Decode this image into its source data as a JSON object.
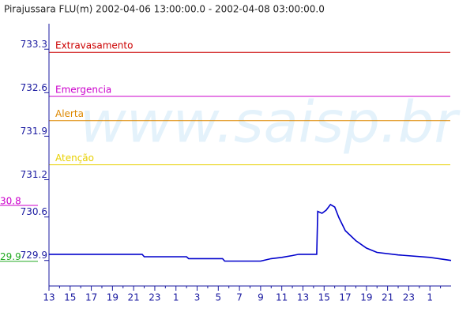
{
  "chart_data": {
    "type": "line",
    "title": "Pirajussara FLU(m) 2002-04-06 13:00:00.0 - 2002-04-08 03:00:00.0",
    "watermark": "www.saisp.br",
    "xlim": [
      0,
      38
    ],
    "xticks": [
      {
        "value": 0,
        "label": "13"
      },
      {
        "value": 2,
        "label": "15"
      },
      {
        "value": 4,
        "label": "17"
      },
      {
        "value": 6,
        "label": "19"
      },
      {
        "value": 8,
        "label": "21"
      },
      {
        "value": 10,
        "label": "23"
      },
      {
        "value": 12,
        "label": "1"
      },
      {
        "value": 14,
        "label": "3"
      },
      {
        "value": 16,
        "label": "5"
      },
      {
        "value": 18,
        "label": "7"
      },
      {
        "value": 20,
        "label": "9"
      },
      {
        "value": 22,
        "label": "11"
      },
      {
        "value": 24,
        "label": "13"
      },
      {
        "value": 26,
        "label": "15"
      },
      {
        "value": 28,
        "label": "17"
      },
      {
        "value": 30,
        "label": "19"
      },
      {
        "value": 32,
        "label": "21"
      },
      {
        "value": 34,
        "label": "23"
      },
      {
        "value": 36,
        "label": "1"
      }
    ],
    "ylim": [
      729.49,
      733.71
    ],
    "yticks": [
      729.9,
      730.6,
      731.2,
      731.9,
      732.6,
      733.3
    ],
    "thresholds": [
      {
        "name": "Extravasamento",
        "value": 733.25,
        "color": "#cc0000"
      },
      {
        "name": "Emergencia",
        "value": 732.54,
        "color": "#cc00cc"
      },
      {
        "name": "Alerta",
        "value": 732.15,
        "color": "#dd8800"
      },
      {
        "name": "Atenção",
        "value": 731.44,
        "color": "#e8d000"
      }
    ],
    "max_marker": {
      "value": 730.8,
      "label": "30.8",
      "color": "#cc00cc"
    },
    "min_marker": {
      "value": 729.9,
      "label": "29.9",
      "color": "#22aa22"
    },
    "series": [
      {
        "name": "Pirajussara FLU(m)",
        "color": "#0000cc",
        "x": [
          0,
          8.8,
          9,
          13,
          13.2,
          16.4,
          16.6,
          20,
          21,
          22,
          23,
          23.6,
          25.3,
          25.4,
          25.8,
          26.2,
          26.6,
          27,
          27.4,
          28,
          29,
          30,
          31,
          33,
          36,
          38
        ],
        "values": [
          730.0,
          730.0,
          729.96,
          729.96,
          729.93,
          729.93,
          729.89,
          729.89,
          729.93,
          729.95,
          729.98,
          730.0,
          730.0,
          730.69,
          730.66,
          730.71,
          730.8,
          730.76,
          730.59,
          730.38,
          730.22,
          730.1,
          730.03,
          729.99,
          729.95,
          729.9
        ]
      }
    ]
  }
}
